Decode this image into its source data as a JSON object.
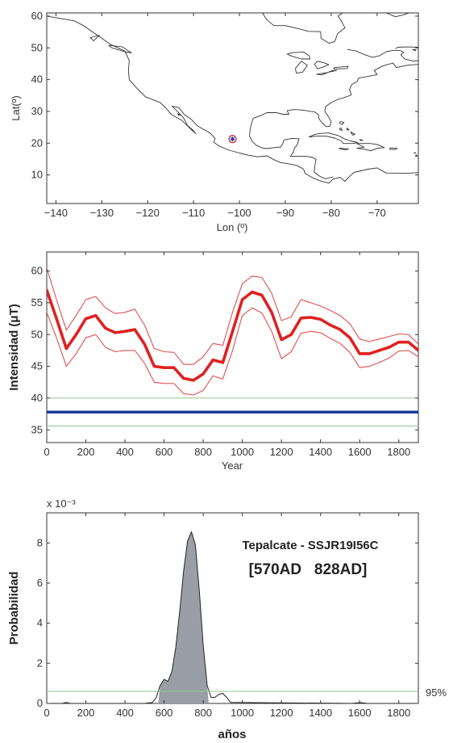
{
  "chart_data": [
    {
      "type": "map",
      "xlabel": "Lon (º)",
      "ylabel": "Lat(º)",
      "xlim": [
        -142,
        -61
      ],
      "ylim": [
        1,
        61
      ],
      "x_ticks": [
        -140,
        -130,
        -120,
        -110,
        -100,
        -90,
        -80,
        -70
      ],
      "y_ticks": [
        10,
        20,
        30,
        40,
        50,
        60
      ],
      "site": {
        "lon": -101.5,
        "lat": 21.3,
        "marker": "asterisk-in-circle"
      },
      "colors": {
        "coast": "#333333",
        "site_ring": "#d02020",
        "site_star": "#2040c0"
      }
    },
    {
      "type": "line",
      "xlabel": "Year",
      "ylabel": "Intensidad (μT)",
      "xlim": [
        0,
        1900
      ],
      "ylim": [
        33,
        63
      ],
      "x_ticks": [
        0,
        200,
        400,
        600,
        800,
        1000,
        1200,
        1400,
        1600,
        1800
      ],
      "y_ticks": [
        35,
        40,
        45,
        50,
        55,
        60
      ],
      "x": [
        0,
        50,
        100,
        150,
        200,
        250,
        300,
        350,
        400,
        450,
        500,
        550,
        600,
        650,
        700,
        750,
        800,
        850,
        900,
        950,
        1000,
        1050,
        1100,
        1150,
        1200,
        1250,
        1300,
        1350,
        1400,
        1450,
        1500,
        1550,
        1600,
        1650,
        1700,
        1750,
        1800,
        1850,
        1900
      ],
      "series": [
        {
          "role": "curve",
          "color": "#e02020",
          "values": [
            57,
            52.5,
            47.8,
            50,
            52.5,
            53,
            51,
            50.3,
            50.5,
            50.8,
            48.5,
            45,
            44.8,
            44.8,
            43.1,
            42.8,
            43.8,
            46,
            45.6,
            50.5,
            55.5,
            56.7,
            56.2,
            53.5,
            49.2,
            50,
            52.6,
            52.7,
            52.4,
            51.5,
            50.8,
            49.5,
            47,
            47,
            47.5,
            48,
            48.8,
            48.8,
            47.5
          ]
        },
        {
          "role": "upper",
          "color": "#e05050",
          "values": [
            60.5,
            55.5,
            50.7,
            53,
            55.5,
            56,
            54.2,
            53.3,
            53.5,
            54,
            51.5,
            47.8,
            47.3,
            47.2,
            45.3,
            45.3,
            46.5,
            48.6,
            48.3,
            53.5,
            58,
            59.2,
            59,
            56.5,
            52.2,
            52.8,
            55.5,
            55,
            54.5,
            53.8,
            53,
            51.7,
            49.3,
            48.9,
            49.3,
            49.7,
            50.1,
            50,
            48.5
          ]
        },
        {
          "role": "lower",
          "color": "#e05050",
          "values": [
            53.5,
            49.5,
            45,
            47,
            49.5,
            50,
            48,
            47.3,
            47.5,
            47.5,
            45.5,
            42.5,
            42.3,
            42.3,
            40.7,
            40.5,
            41.2,
            43.5,
            43,
            47.5,
            53,
            54.2,
            53.4,
            50.5,
            46.2,
            47.3,
            50.2,
            50.5,
            50.3,
            49.4,
            48.6,
            47.2,
            44.8,
            45,
            45.6,
            46.3,
            47.4,
            47.5,
            46.5
          ]
        }
      ],
      "hlines": [
        {
          "y": 37.8,
          "color": "#1a3a9c",
          "role": "value"
        },
        {
          "y": 40,
          "color": "#8fc98a",
          "role": "upper"
        },
        {
          "y": 35.6,
          "color": "#8fc98a",
          "role": "lower"
        }
      ]
    },
    {
      "type": "area",
      "xlabel": "años",
      "ylabel": "Probabilidad",
      "exponent": "x 10⁻³",
      "xlim": [
        0,
        1900
      ],
      "ylim": [
        0,
        9.5
      ],
      "x_ticks": [
        0,
        200,
        400,
        600,
        800,
        1000,
        1200,
        1400,
        1600,
        1800
      ],
      "y_ticks": [
        0,
        2,
        4,
        6,
        8
      ],
      "annotation_title": "Tepalcate - SSJR19I56C",
      "annotation_interval": "[570AD   828AD]",
      "threshold": {
        "y": 0.6,
        "label": "95%",
        "color": "#8fc98a"
      },
      "fill_color": "#9a9ea6",
      "x": [
        0,
        80,
        100,
        120,
        500,
        540,
        560,
        580,
        600,
        620,
        640,
        660,
        680,
        700,
        720,
        740,
        760,
        780,
        800,
        820,
        840,
        860,
        880,
        900,
        920,
        940,
        1560,
        1600,
        1640,
        1900
      ],
      "values": [
        0,
        0,
        0.05,
        0,
        0,
        0.05,
        0.3,
        0.9,
        1.2,
        1.1,
        1.6,
        2.8,
        4.6,
        6.6,
        8.1,
        8.55,
        7.9,
        5.6,
        2.9,
        0.9,
        0.3,
        0.3,
        0.45,
        0.5,
        0.3,
        0.05,
        0,
        0.04,
        0,
        0
      ],
      "shaded_range": [
        570,
        828
      ]
    }
  ]
}
